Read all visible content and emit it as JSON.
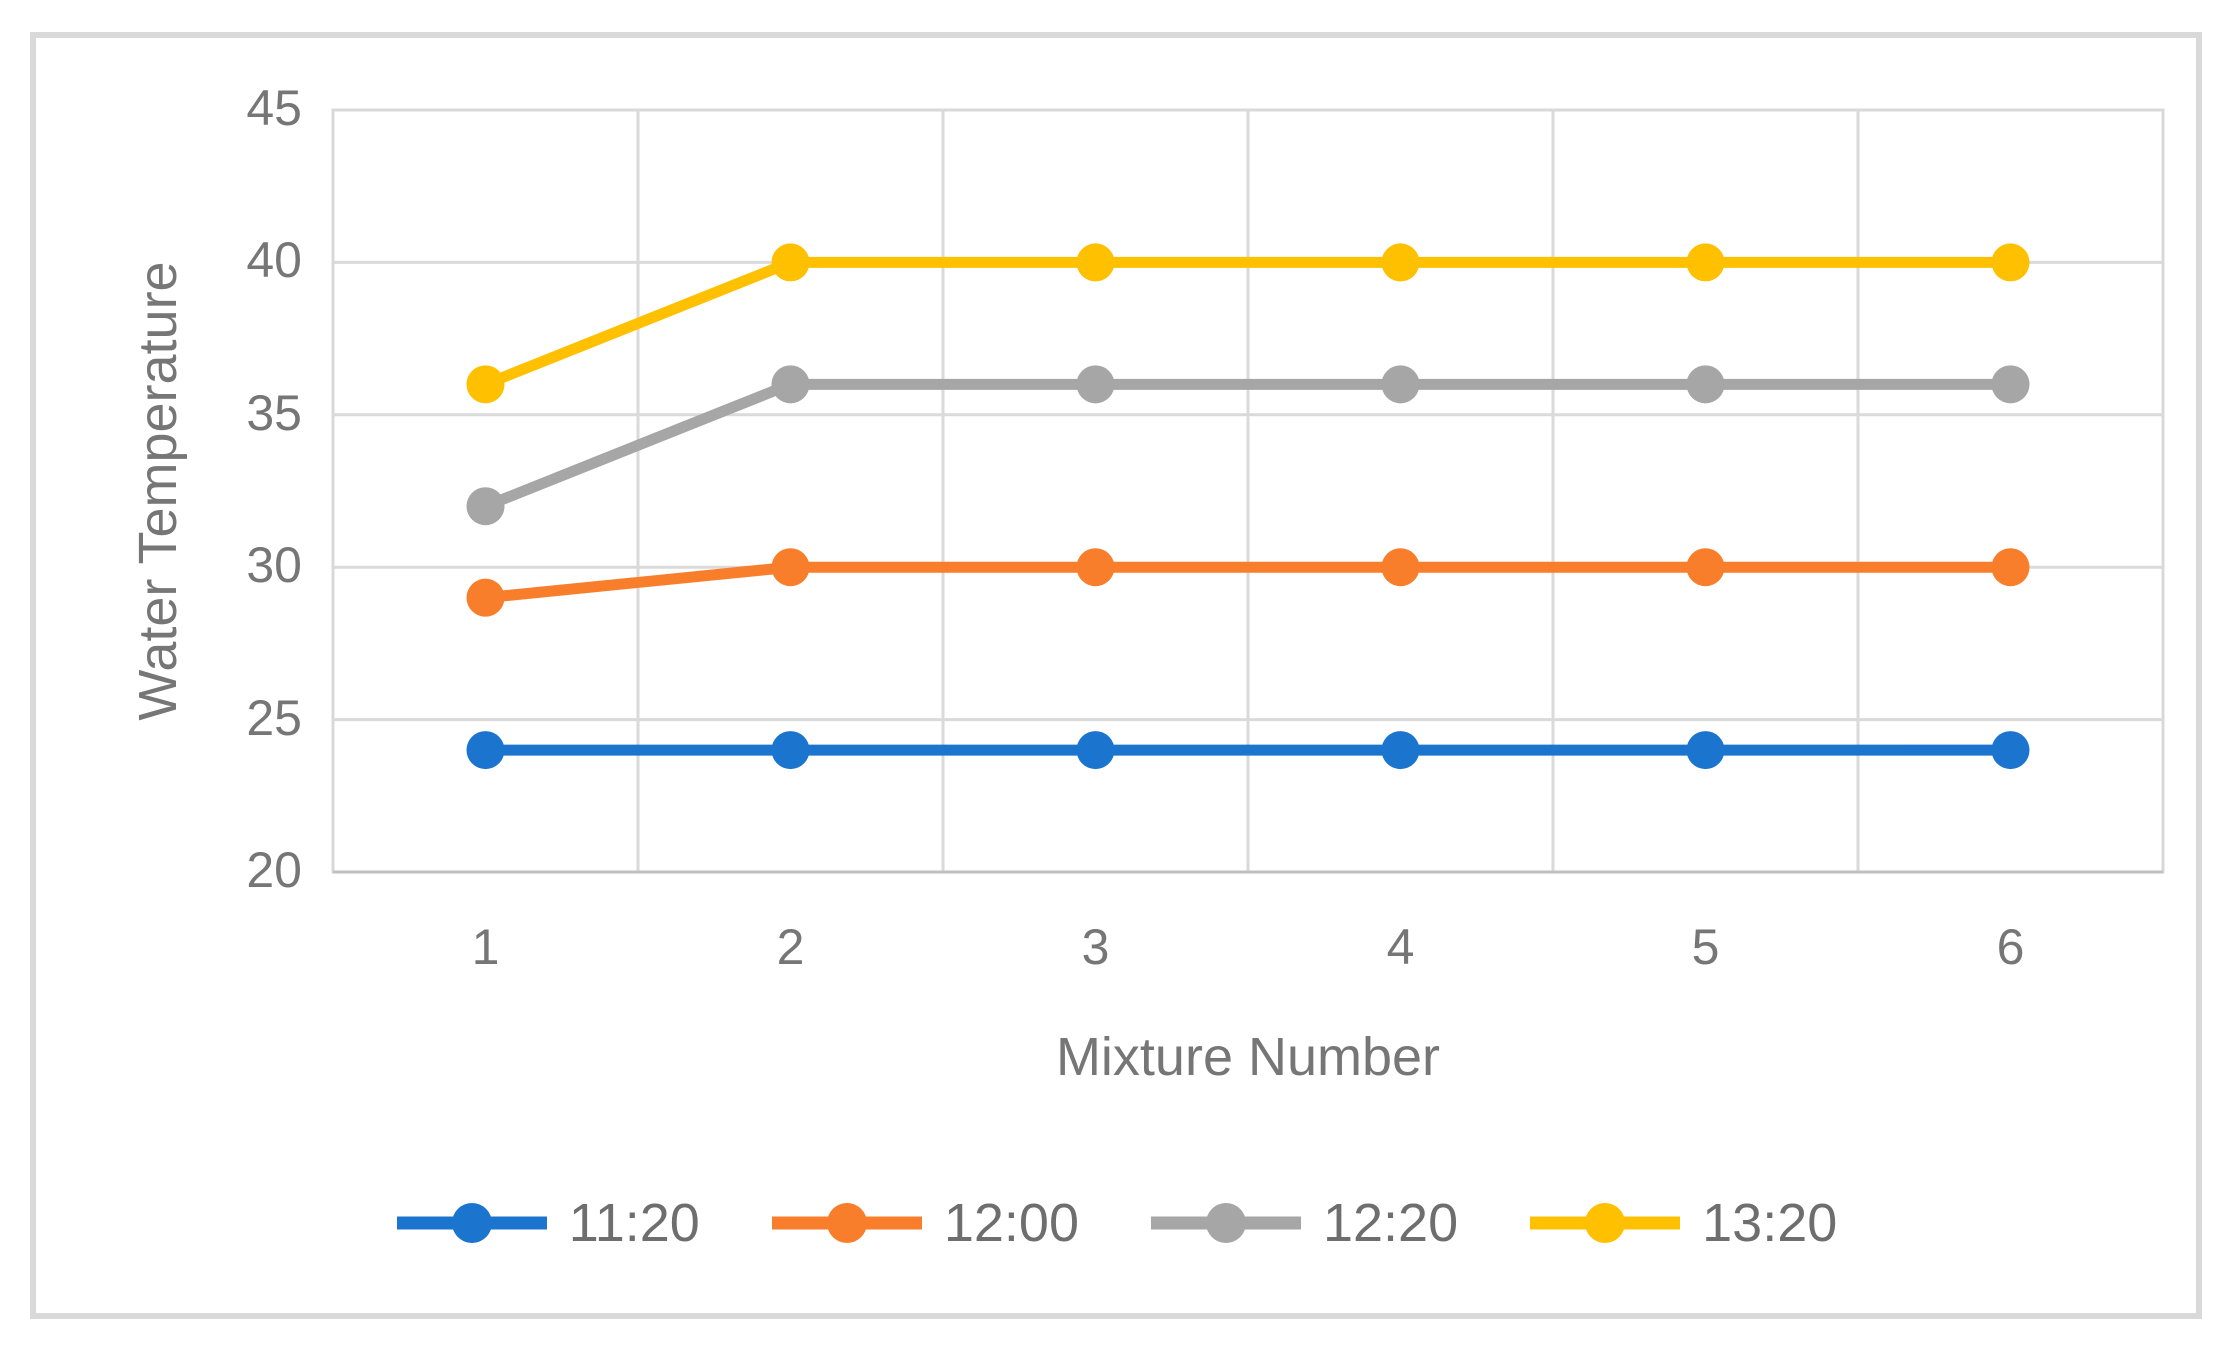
{
  "figure": {
    "x_axis_title": "Mixture Number",
    "y_axis_title": "Water Temperature"
  },
  "chart_data": {
    "type": "line",
    "title": "",
    "categories": [
      "1",
      "2",
      "3",
      "4",
      "5",
      "6"
    ],
    "series": [
      {
        "name": "11:20",
        "color": "#1B74CE",
        "values": [
          24,
          24,
          24,
          24,
          24,
          24
        ]
      },
      {
        "name": "12:00",
        "color": "#F87E2C",
        "values": [
          29,
          30,
          30,
          30,
          30,
          30
        ]
      },
      {
        "name": "12:20",
        "color": "#A6A6A6",
        "values": [
          32,
          36,
          36,
          36,
          36,
          36
        ]
      },
      {
        "name": "13:20",
        "color": "#FFC000",
        "values": [
          36,
          40,
          40,
          40,
          40,
          40
        ]
      }
    ],
    "xlabel": "Mixture Number",
    "ylabel": "Water Temperature",
    "ylim": [
      20,
      45
    ],
    "yticks": [
      20,
      25,
      30,
      35,
      40,
      45
    ],
    "grid": true,
    "marker": "circle",
    "legend_position": "bottom",
    "legend_entries": [
      "11:20",
      "12:00",
      "12:20",
      "13:20"
    ]
  },
  "colors": {
    "gridline": "#dadada",
    "axis_line": "#c0c0c0",
    "plot_border": "#d9d9d9",
    "frame": "#d9d9d9",
    "tick_text": "#767676",
    "background": "#ffffff"
  }
}
